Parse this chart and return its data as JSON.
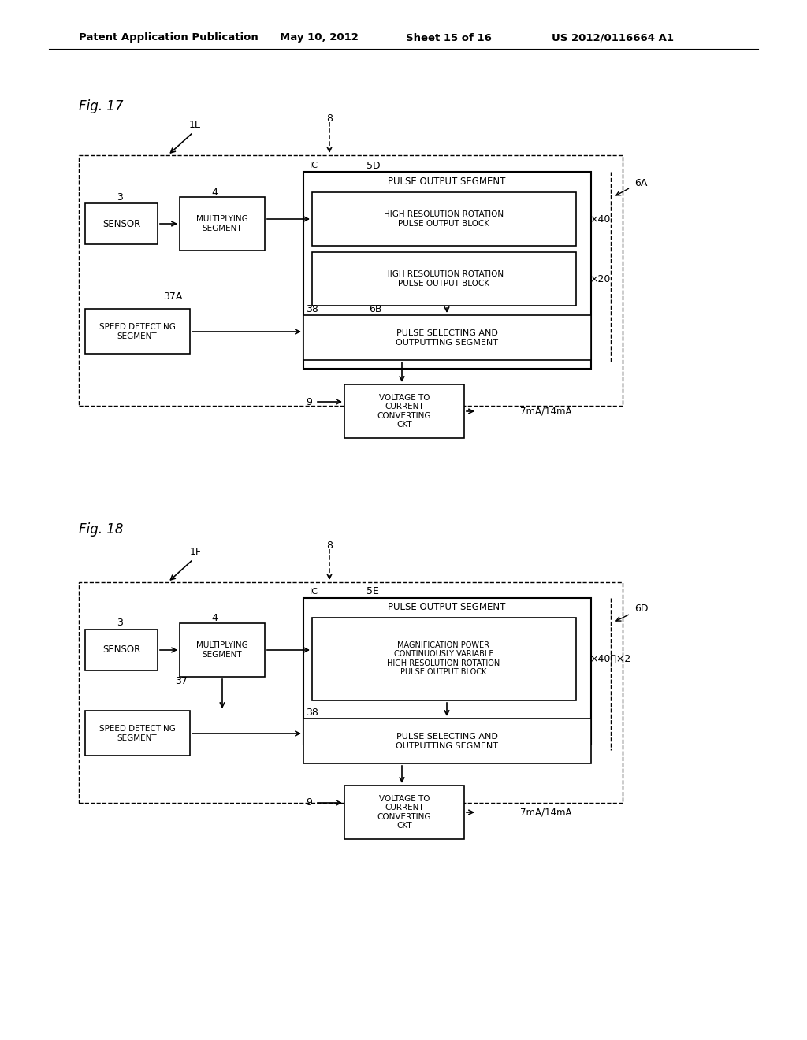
{
  "header_left": "Patent Application Publication",
  "header_mid1": "May 10, 2012",
  "header_mid2": "Sheet 15 of 16",
  "header_right": "US 2012/0116664 A1",
  "fig17": {
    "label": "Fig. 17",
    "lbl_1E": "1E",
    "lbl_8": "8",
    "lbl_IC": "IC",
    "lbl_5D": "5D",
    "lbl_6A": "6A",
    "lbl_6B": "6B",
    "lbl_3": "3",
    "lbl_4": "4",
    "lbl_37A": "37A",
    "lbl_38": "38",
    "lbl_9": "9",
    "lbl_x40": "×40",
    "lbl_x20": "×20",
    "lbl_7ma": "7mA/14mA",
    "sensor": "SENSOR",
    "mult": "MULTIPLYING\nSEGMENT",
    "pos_title": "PULSE OUTPUT SEGMENT",
    "hrr1": "HIGH RESOLUTION ROTATION\nPULSE OUTPUT BLOCK",
    "hrr2": "HIGH RESOLUTION ROTATION\nPULSE OUTPUT BLOCK",
    "speed": "SPEED DETECTING\nSEGMENT",
    "psel": "PULSE SELECTING AND\nOUTPUTTING SEGMENT",
    "vtc": "VOLTAGE TO\nCURRENT\nCONVERTING\nCKT"
  },
  "fig18": {
    "label": "Fig. 18",
    "lbl_1F": "1F",
    "lbl_8": "8",
    "lbl_IC": "IC",
    "lbl_5E": "5E",
    "lbl_6D": "6D",
    "lbl_3": "3",
    "lbl_4": "4",
    "lbl_37": "37",
    "lbl_38": "38",
    "lbl_9": "9",
    "lbl_x40x2": "×40～×2",
    "lbl_7ma": "7mA/14mA",
    "sensor": "SENSOR",
    "mult": "MULTIPLYING\nSEGMENT",
    "pos_title": "PULSE OUTPUT SEGMENT",
    "mag": "MAGNIFICATION POWER\nCONTINUOUSLY VARIABLE\nHIGH RESOLUTION ROTATION\nPULSE OUTPUT BLOCK",
    "speed": "SPEED DETECTING\nSEGMENT",
    "psel": "PULSE SELECTING AND\nOUTPUTTING SEGMENT",
    "vtc": "VOLTAGE TO\nCURRENT\nCONVERTING\nCKT"
  }
}
